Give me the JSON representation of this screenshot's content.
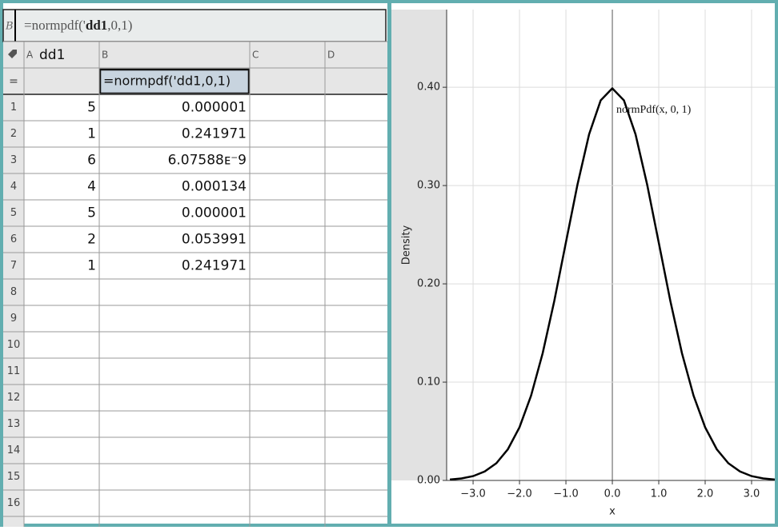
{
  "spreadsheet": {
    "entry_line": {
      "cell": "B",
      "prefix": "=normpdf('",
      "bold": "dd1",
      "suffix": ",0,1)"
    },
    "columns": [
      {
        "letter": "A",
        "name": "dd1"
      },
      {
        "letter": "B"
      },
      {
        "letter": "C"
      },
      {
        "letter": "D"
      }
    ],
    "formula_row": {
      "marker": "=",
      "b": "=normpdf('dd1,0,1)"
    },
    "rows": [
      {
        "number": 1,
        "a": 5,
        "b": "0.000001"
      },
      {
        "number": 2,
        "a": 1,
        "b": "0.241971"
      },
      {
        "number": 3,
        "a": 6,
        "b": "6.07588ᴇ⁻9"
      },
      {
        "number": 4,
        "a": 4,
        "b": "0.000134"
      },
      {
        "number": 5,
        "a": 5,
        "b": "0.000001"
      },
      {
        "number": 6,
        "a": 2,
        "b": "0.053991"
      },
      {
        "number": 7,
        "a": 1,
        "b": "0.241971"
      },
      {
        "number": 8
      },
      {
        "number": 9
      },
      {
        "number": 10
      },
      {
        "number": 11
      },
      {
        "number": 12
      },
      {
        "number": 13
      },
      {
        "number": 14
      },
      {
        "number": 15
      },
      {
        "number": 16
      }
    ]
  },
  "chart_data": {
    "type": "line",
    "xlabel": "x",
    "ylabel": "Density",
    "annotation": "normPdf(x, 0, 1)",
    "x": [
      -3.5,
      -3.25,
      -3,
      -2.75,
      -2.5,
      -2.25,
      -2,
      -1.75,
      -1.5,
      -1.25,
      -1,
      -0.75,
      -0.5,
      -0.25,
      0,
      0.25,
      0.5,
      0.75,
      1,
      1.25,
      1.5,
      1.75,
      2,
      2.25,
      2.5,
      2.75,
      3,
      3.25,
      3.5
    ],
    "series": [
      {
        "color": "#000000",
        "values": [
          0.0009,
          0.002,
          0.0044,
          0.0091,
          0.0175,
          0.0317,
          0.054,
          0.0863,
          0.1295,
          0.1826,
          0.242,
          0.3011,
          0.3521,
          0.3867,
          0.3989,
          0.3867,
          0.3521,
          0.3011,
          0.242,
          0.1826,
          0.1295,
          0.0863,
          0.054,
          0.0317,
          0.0175,
          0.0091,
          0.0044,
          0.002,
          0.0009
        ]
      }
    ],
    "xlim": [
      -3.57,
      3.5
    ],
    "ylim": [
      0,
      0.479
    ],
    "xticks": [
      {
        "value": -3,
        "label": "−3.0"
      },
      {
        "value": -2,
        "label": "−2.0"
      },
      {
        "value": -1,
        "label": "−1.0"
      },
      {
        "value": 0,
        "label": "0.0"
      },
      {
        "value": 1,
        "label": "1.0"
      },
      {
        "value": 2,
        "label": "2.0"
      },
      {
        "value": 3,
        "label": "3.0"
      }
    ],
    "yticks": [
      {
        "value": 0,
        "label": "0.00"
      },
      {
        "value": 0.1,
        "label": "0.10"
      },
      {
        "value": 0.2,
        "label": "0.20"
      },
      {
        "value": 0.3,
        "label": "0.30"
      },
      {
        "value": 0.4,
        "label": "0.40"
      }
    ],
    "grid": true
  }
}
